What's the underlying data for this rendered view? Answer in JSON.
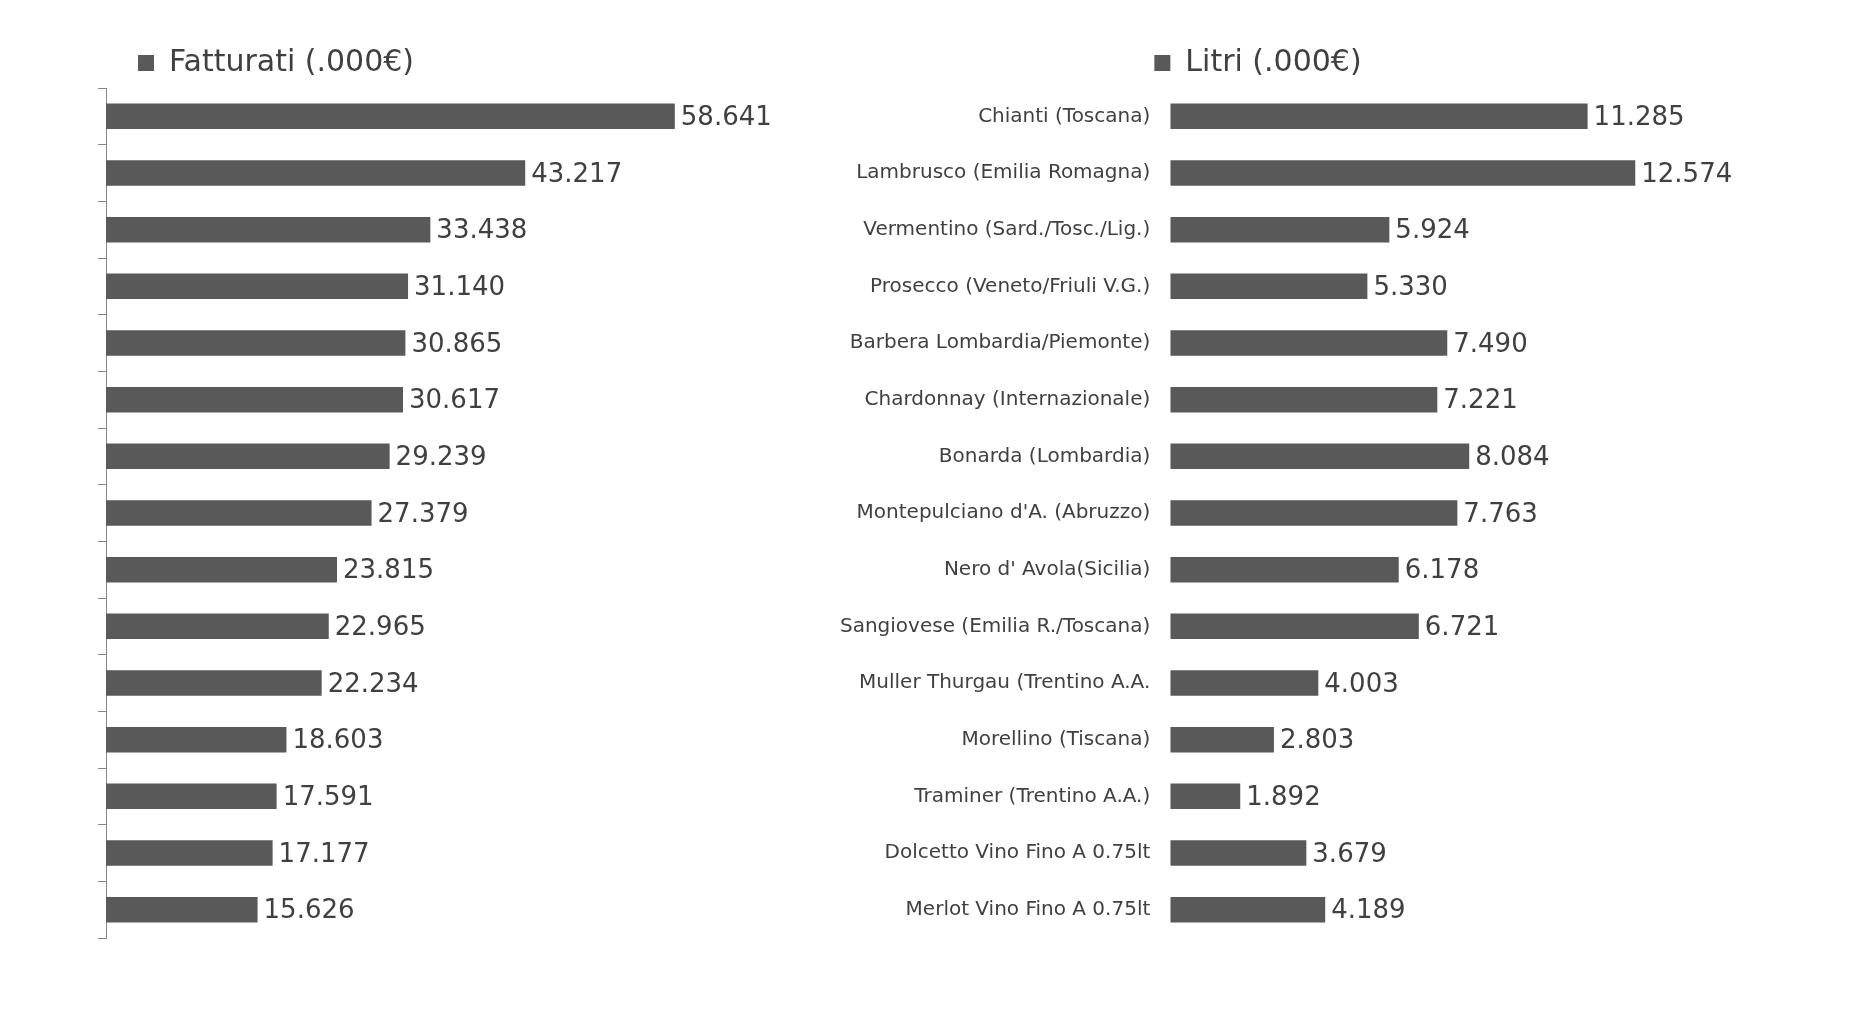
{
  "chart_data": [
    {
      "type": "bar",
      "orientation": "horizontal",
      "tick_labels": false,
      "legend": "top",
      "data_labels": true,
      "categories": [
        null,
        null,
        null,
        null,
        null,
        null,
        null,
        null,
        null,
        null,
        null,
        null,
        null,
        null,
        null
      ],
      "series": [
        {
          "name": "Fatturati (.000€)",
          "color": "#595959",
          "values": [
            58.641,
            43.217,
            33.438,
            31.14,
            30.865,
            30.617,
            29.239,
            27.379,
            23.815,
            22.965,
            22.234,
            18.603,
            17.591,
            17.177,
            15.626
          ],
          "value_labels": [
            "58.641",
            "43.217",
            "33.438",
            "31.140",
            "30.865",
            "30.617",
            "29.239",
            "27.379",
            "23.815",
            "22.965",
            "22.234",
            "18.603",
            "17.591",
            "17.177",
            "15.626"
          ]
        }
      ]
    },
    {
      "type": "bar",
      "orientation": "horizontal",
      "tick_labels": "y",
      "legend": "top",
      "data_labels": true,
      "categories": [
        "Chianti (Toscana)",
        "Lambrusco (Emilia Romagna)",
        "Vermentino (Sard./Tosc./Lig.)",
        "Prosecco (Veneto/Friuli V.G.)",
        "Barbera Lombardia/Piemonte)",
        "Chardonnay (Internazionale)",
        "Bonarda (Lombardia)",
        "Montepulciano d'A. (Abruzzo)",
        "Nero d' Avola(Sicilia)",
        "Sangiovese (Emilia R./Toscana)",
        "Muller Thurgau (Trentino A.A.",
        "Morellino (Tiscana)",
        "Traminer (Trentino A.A.)",
        "Dolcetto Vino Fino A 0.75lt",
        "Merlot Vino Fino A 0.75lt"
      ],
      "series": [
        {
          "name": "Litri (.000€)",
          "color": "#595959",
          "values": [
            11.285,
            12.574,
            5.924,
            5.33,
            7.49,
            7.221,
            8.084,
            7.763,
            6.178,
            6.721,
            4.003,
            2.803,
            1.892,
            3.679,
            4.189
          ],
          "value_labels": [
            "11.285",
            "12.574",
            "5.924",
            "5.330",
            "7.490",
            "7.221",
            "8.084",
            "7.763",
            "6.178",
            "6.721",
            "4.003",
            "2.803",
            "1.892",
            "3.679",
            "4.189"
          ]
        }
      ]
    }
  ]
}
